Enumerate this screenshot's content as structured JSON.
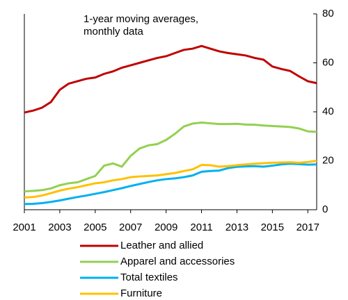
{
  "chart_data": {
    "type": "line",
    "annotation": [
      "1-year moving averages,",
      "monthly data"
    ],
    "x": [
      2001,
      2001.5,
      2002,
      2002.5,
      2003,
      2003.5,
      2004,
      2004.5,
      2005,
      2005.5,
      2006,
      2006.5,
      2007,
      2007.5,
      2008,
      2008.5,
      2009,
      2009.5,
      2010,
      2010.5,
      2011,
      2011.5,
      2012,
      2012.5,
      2013,
      2013.5,
      2014,
      2014.5,
      2015,
      2015.5,
      2016,
      2016.5,
      2017,
      2017.5
    ],
    "xlim": [
      2001,
      2017.5
    ],
    "xticks": [
      2001,
      2003,
      2005,
      2007,
      2009,
      2011,
      2013,
      2015,
      2017
    ],
    "ylim": [
      0,
      80
    ],
    "yticks": [
      0,
      20,
      40,
      60,
      80
    ],
    "series": [
      {
        "name": "Leather and allied",
        "color": "#c00000",
        "values": [
          39.7,
          40.5,
          41.7,
          44,
          49,
          51.5,
          52.5,
          53.5,
          54,
          55.5,
          56.5,
          58,
          59,
          60,
          61,
          62,
          62.7,
          64,
          65.3,
          65.8,
          66.9,
          65.8,
          64.7,
          64,
          63.5,
          63,
          62,
          61.3,
          58.5,
          57.5,
          56.7,
          54.5,
          52.5,
          51.7
        ]
      },
      {
        "name": "Apparel and accessories",
        "color": "#92d050",
        "values": [
          7.5,
          7.7,
          8,
          8.7,
          10,
          10.8,
          11.2,
          12.5,
          13.8,
          18,
          18.9,
          17.6,
          22,
          25,
          26.3,
          26.8,
          28.5,
          31,
          34,
          35.2,
          35.6,
          35.3,
          35,
          35,
          35.1,
          34.8,
          34.7,
          34.4,
          34.2,
          34,
          33.8,
          33.2,
          32,
          31.8
        ]
      },
      {
        "name": "Total textiles",
        "color": "#00b0f0",
        "values": [
          2.3,
          2.4,
          2.7,
          3.2,
          3.8,
          4.5,
          5.2,
          5.8,
          6.5,
          7.2,
          8,
          8.8,
          9.7,
          10.5,
          11.3,
          12,
          12.5,
          12.8,
          13.3,
          14,
          15.5,
          15.8,
          16,
          17,
          17.5,
          17.7,
          17.8,
          17.6,
          18,
          18.5,
          18.8,
          18.6,
          18.4,
          18.5
        ]
      },
      {
        "name": "Furniture",
        "color": "#ffc000",
        "values": [
          5,
          5.2,
          5.8,
          6.8,
          7.8,
          8.6,
          9.2,
          10,
          10.8,
          11.2,
          12,
          12.5,
          13.3,
          13.6,
          13.8,
          14,
          14.5,
          15,
          15.8,
          16.5,
          18.3,
          18.2,
          17.6,
          17.8,
          18.2,
          18.5,
          18.8,
          19,
          19.2,
          19.3,
          19.4,
          19.2,
          19.5,
          20
        ]
      }
    ]
  }
}
